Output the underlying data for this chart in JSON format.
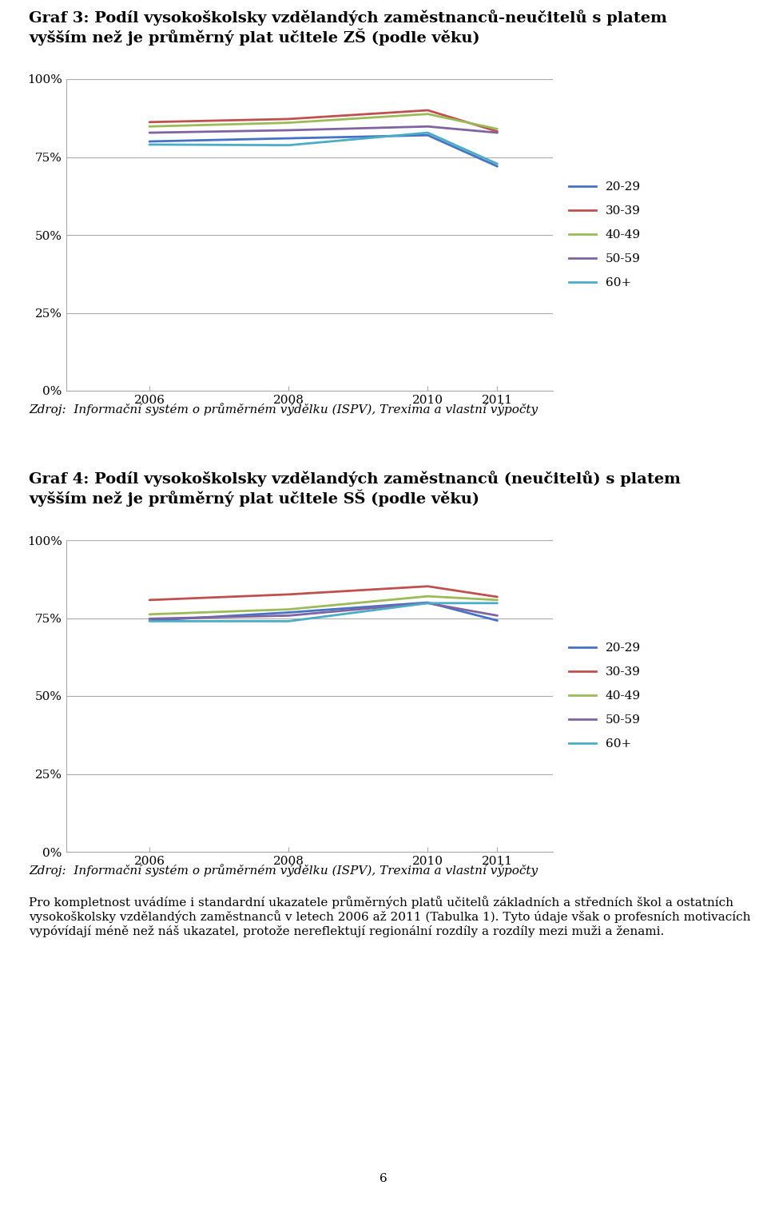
{
  "title1": "Graf 3: Podíl vysokoškolsky vzdělandých zaměstnanců-neučitelů s platem\nvyšším než je průměrný plat učitele ZŠ (podle věku)",
  "title2": "Graf 4: Podíl vysokoškolsky vzdělandých zaměstnanců (neučitelů) s platem\nvyšším než je průměrný plat učitele SŠ (podle věku)",
  "source_text": "Zdroj:  Informační systém o průměrném výdělku (ISPV), Trexima a vlastní výpočty",
  "footer_para": "Pro kompletnost uvádíme i standardní ukazatele průměrných platů učitelů základních a středních škol a ostatních vysokoškolsky vzdělandých zaměstnanců v letech 2006 až 2011 (Tabulka 1). Tyto údaje však o profesních motivacích vypóvídají méně než náš ukazatel, protože nereflektují regionální rozdíly a rozdíly mezi muži a ženami.",
  "page_number": "6",
  "x": [
    2006,
    2008,
    2010,
    2011
  ],
  "graph1": {
    "20-29": [
      0.8,
      0.81,
      0.82,
      0.72
    ],
    "30-39": [
      0.862,
      0.872,
      0.9,
      0.832
    ],
    "40-49": [
      0.848,
      0.86,
      0.888,
      0.84
    ],
    "50-59": [
      0.828,
      0.836,
      0.848,
      0.828
    ],
    "60+": [
      0.79,
      0.788,
      0.828,
      0.728
    ]
  },
  "graph2": {
    "20-29": [
      0.742,
      0.768,
      0.8,
      0.742
    ],
    "30-39": [
      0.808,
      0.826,
      0.852,
      0.818
    ],
    "40-49": [
      0.762,
      0.778,
      0.82,
      0.808
    ],
    "50-59": [
      0.748,
      0.758,
      0.798,
      0.758
    ],
    "60+": [
      0.74,
      0.74,
      0.798,
      0.798
    ]
  },
  "colors": {
    "20-29": "#4472C4",
    "30-39": "#C0504D",
    "40-49": "#9BBB59",
    "50-59": "#8064A2",
    "60+": "#4BACC6"
  },
  "ylim": [
    0.0,
    1.0
  ],
  "yticks": [
    0.0,
    0.25,
    0.5,
    0.75,
    1.0
  ],
  "yticklabels": [
    "0%",
    "25%",
    "50%",
    "75%",
    "100%"
  ],
  "xticks": [
    2006,
    2008,
    2010,
    2011
  ],
  "background_color": "#FFFFFF",
  "grid_color": "#AAAAAA",
  "line_width": 2.0,
  "chart_border_color": "#AAAAAA"
}
